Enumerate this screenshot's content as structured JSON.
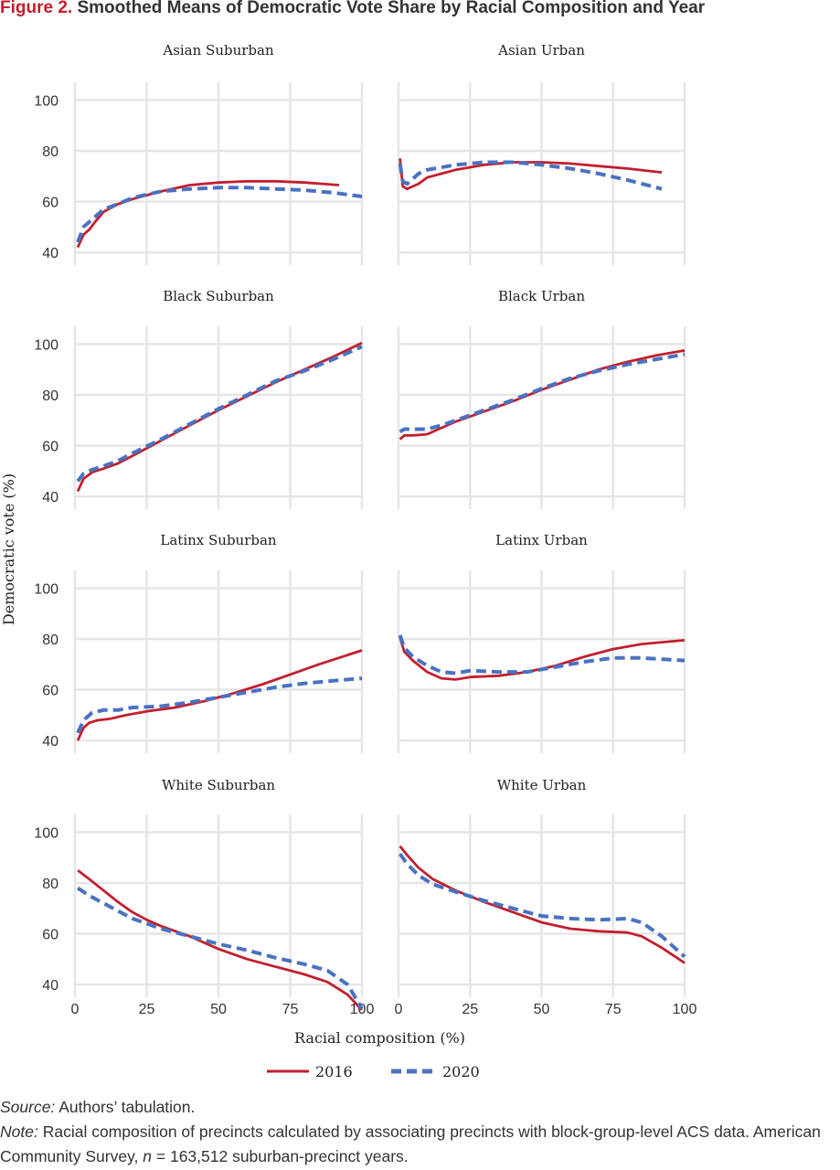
{
  "figure": {
    "number": "Figure 2.",
    "title": "Smoothed Means of Democratic Vote Share by Racial Composition and Year"
  },
  "notes": {
    "source_label": "Source:",
    "source_text": "Authors’ tabulation.",
    "note_label": "Note:",
    "note_text_a": "Racial composition of precincts calculated by associating precincts with block-group-level ACS data. American Community Survey,",
    "note_n": "n",
    "note_text_b": "= 163,512 suburban-precinct years."
  },
  "chart_data": {
    "type": "line",
    "xlabel": "Racial composition (%)",
    "ylabel": "Democratic vote (%)",
    "xlim": [
      0,
      100
    ],
    "ylim": [
      35,
      107
    ],
    "x_ticks": [
      0,
      25,
      50,
      75,
      100
    ],
    "y_ticks": [
      40,
      60,
      80,
      100
    ],
    "grid": true,
    "legend_position": "bottom",
    "series_styles": [
      {
        "name": "2016",
        "color": "#c21f2e",
        "dash": "solid"
      },
      {
        "name": "2020",
        "color": "#4a72c0",
        "dash": "dashed"
      }
    ],
    "panels": [
      {
        "title": "Asian Suburban",
        "series": [
          {
            "name": "2016",
            "points": [
              [
                1,
                42
              ],
              [
                3,
                47
              ],
              [
                5,
                49
              ],
              [
                7,
                52
              ],
              [
                10,
                56
              ],
              [
                15,
                59
              ],
              [
                20,
                61
              ],
              [
                30,
                64
              ],
              [
                40,
                66.5
              ],
              [
                50,
                67.5
              ],
              [
                60,
                68
              ],
              [
                70,
                68
              ],
              [
                80,
                67.5
              ],
              [
                92,
                66.5
              ]
            ]
          },
          {
            "name": "2020",
            "points": [
              [
                1,
                44
              ],
              [
                3,
                50
              ],
              [
                6,
                53
              ],
              [
                10,
                57
              ],
              [
                15,
                59
              ],
              [
                20,
                61.5
              ],
              [
                30,
                64
              ],
              [
                40,
                65
              ],
              [
                50,
                65.5
              ],
              [
                60,
                65.5
              ],
              [
                70,
                65
              ],
              [
                80,
                64.5
              ],
              [
                90,
                63.5
              ],
              [
                100,
                62
              ]
            ]
          }
        ]
      },
      {
        "title": "Asian Urban",
        "series": [
          {
            "name": "2016",
            "points": [
              [
                0.5,
                77
              ],
              [
                1.5,
                66
              ],
              [
                3,
                65
              ],
              [
                5,
                66
              ],
              [
                7,
                67
              ],
              [
                10,
                69.5
              ],
              [
                15,
                71
              ],
              [
                20,
                72.5
              ],
              [
                30,
                74.5
              ],
              [
                40,
                75.5
              ],
              [
                50,
                75.5
              ],
              [
                60,
                75
              ],
              [
                70,
                74
              ],
              [
                80,
                73
              ],
              [
                92,
                71.5
              ]
            ]
          },
          {
            "name": "2020",
            "points": [
              [
                0.5,
                75
              ],
              [
                1.5,
                68
              ],
              [
                3,
                67
              ],
              [
                5,
                69
              ],
              [
                7,
                71
              ],
              [
                10,
                72.5
              ],
              [
                15,
                73.5
              ],
              [
                20,
                74.5
              ],
              [
                30,
                75.5
              ],
              [
                40,
                75.5
              ],
              [
                50,
                74.5
              ],
              [
                60,
                73
              ],
              [
                70,
                71
              ],
              [
                80,
                68.5
              ],
              [
                92,
                65
              ]
            ]
          }
        ]
      },
      {
        "title": "Black Suburban",
        "series": [
          {
            "name": "2016",
            "points": [
              [
                1,
                42
              ],
              [
                3,
                47
              ],
              [
                6,
                49.5
              ],
              [
                10,
                51
              ],
              [
                15,
                53
              ],
              [
                20,
                56
              ],
              [
                30,
                62
              ],
              [
                40,
                68
              ],
              [
                50,
                74
              ],
              [
                60,
                79.5
              ],
              [
                70,
                85
              ],
              [
                80,
                90
              ],
              [
                90,
                95
              ],
              [
                100,
                100.5
              ]
            ]
          },
          {
            "name": "2020",
            "points": [
              [
                1,
                46
              ],
              [
                3,
                49
              ],
              [
                6,
                50.5
              ],
              [
                10,
                52
              ],
              [
                15,
                54
              ],
              [
                20,
                57
              ],
              [
                30,
                62.5
              ],
              [
                40,
                68.5
              ],
              [
                50,
                74.5
              ],
              [
                60,
                80
              ],
              [
                70,
                85.5
              ],
              [
                80,
                89.5
              ],
              [
                90,
                94
              ],
              [
                100,
                99
              ]
            ]
          }
        ]
      },
      {
        "title": "Black Urban",
        "series": [
          {
            "name": "2016",
            "points": [
              [
                0.5,
                62.5
              ],
              [
                2,
                64
              ],
              [
                5,
                64
              ],
              [
                10,
                64.5
              ],
              [
                15,
                67
              ],
              [
                20,
                69.5
              ],
              [
                30,
                73.5
              ],
              [
                40,
                77.5
              ],
              [
                50,
                82
              ],
              [
                60,
                86
              ],
              [
                70,
                90
              ],
              [
                80,
                93
              ],
              [
                90,
                95.5
              ],
              [
                100,
                97.5
              ]
            ]
          },
          {
            "name": "2020",
            "points": [
              [
                0.5,
                65.5
              ],
              [
                2,
                66.5
              ],
              [
                5,
                66.5
              ],
              [
                10,
                66.5
              ],
              [
                15,
                68
              ],
              [
                20,
                70
              ],
              [
                30,
                74
              ],
              [
                40,
                78
              ],
              [
                50,
                82.5
              ],
              [
                60,
                86.5
              ],
              [
                70,
                89.5
              ],
              [
                80,
                92
              ],
              [
                90,
                94
              ],
              [
                100,
                96
              ]
            ]
          }
        ]
      },
      {
        "title": "Latinx Suburban",
        "series": [
          {
            "name": "2016",
            "points": [
              [
                1,
                40
              ],
              [
                3,
                45
              ],
              [
                5,
                47
              ],
              [
                8,
                48
              ],
              [
                12,
                48.5
              ],
              [
                18,
                50
              ],
              [
                25,
                51.5
              ],
              [
                35,
                53
              ],
              [
                45,
                55.5
              ],
              [
                55,
                58.5
              ],
              [
                65,
                62
              ],
              [
                75,
                66
              ],
              [
                85,
                70
              ],
              [
                100,
                75.5
              ]
            ]
          },
          {
            "name": "2020",
            "points": [
              [
                1,
                43
              ],
              [
                3,
                48
              ],
              [
                6,
                51
              ],
              [
                10,
                52
              ],
              [
                15,
                52
              ],
              [
                20,
                53
              ],
              [
                30,
                53.5
              ],
              [
                40,
                55
              ],
              [
                50,
                57
              ],
              [
                60,
                59
              ],
              [
                70,
                61
              ],
              [
                80,
                62.5
              ],
              [
                90,
                63.5
              ],
              [
                100,
                64.5
              ]
            ]
          }
        ]
      },
      {
        "title": "Latinx Urban",
        "series": [
          {
            "name": "2016",
            "points": [
              [
                0.5,
                80.5
              ],
              [
                2,
                75
              ],
              [
                5,
                71.5
              ],
              [
                10,
                67
              ],
              [
                15,
                64.5
              ],
              [
                20,
                64
              ],
              [
                25,
                65
              ],
              [
                35,
                65.5
              ],
              [
                45,
                67
              ],
              [
                55,
                69.5
              ],
              [
                65,
                73
              ],
              [
                75,
                76
              ],
              [
                85,
                78
              ],
              [
                100,
                79.5
              ]
            ]
          },
          {
            "name": "2020",
            "points": [
              [
                0.5,
                81.5
              ],
              [
                2,
                76.5
              ],
              [
                5,
                73
              ],
              [
                10,
                69.5
              ],
              [
                15,
                67
              ],
              [
                20,
                66.5
              ],
              [
                25,
                67.5
              ],
              [
                35,
                67
              ],
              [
                45,
                67
              ],
              [
                55,
                69
              ],
              [
                65,
                71
              ],
              [
                75,
                72.5
              ],
              [
                85,
                72.5
              ],
              [
                100,
                71.5
              ]
            ]
          }
        ]
      },
      {
        "title": "White Suburban",
        "series": [
          {
            "name": "2016",
            "points": [
              [
                1,
                85
              ],
              [
                5,
                81.5
              ],
              [
                10,
                77
              ],
              [
                15,
                72.5
              ],
              [
                20,
                68.5
              ],
              [
                25,
                65.5
              ],
              [
                30,
                63
              ],
              [
                40,
                59
              ],
              [
                50,
                54
              ],
              [
                60,
                50
              ],
              [
                70,
                47
              ],
              [
                80,
                44
              ],
              [
                88,
                41
              ],
              [
                95,
                36
              ],
              [
                100,
                30
              ]
            ]
          },
          {
            "name": "2020",
            "points": [
              [
                1,
                78
              ],
              [
                5,
                75
              ],
              [
                10,
                72
              ],
              [
                15,
                69
              ],
              [
                20,
                66
              ],
              [
                25,
                64
              ],
              [
                30,
                62
              ],
              [
                40,
                59
              ],
              [
                50,
                56
              ],
              [
                60,
                53.5
              ],
              [
                70,
                50.5
              ],
              [
                80,
                48
              ],
              [
                88,
                45.5
              ],
              [
                95,
                40
              ],
              [
                100,
                30.5
              ]
            ]
          }
        ]
      },
      {
        "title": "White Urban",
        "series": [
          {
            "name": "2016",
            "points": [
              [
                0.5,
                94.5
              ],
              [
                3,
                91
              ],
              [
                7,
                86
              ],
              [
                12,
                81.5
              ],
              [
                20,
                77
              ],
              [
                30,
                72.5
              ],
              [
                40,
                68.5
              ],
              [
                50,
                64.5
              ],
              [
                60,
                62
              ],
              [
                70,
                61
              ],
              [
                80,
                60.5
              ],
              [
                85,
                59
              ],
              [
                92,
                54.5
              ],
              [
                100,
                48.5
              ]
            ]
          },
          {
            "name": "2020",
            "points": [
              [
                0.5,
                91.5
              ],
              [
                3,
                87.5
              ],
              [
                7,
                83
              ],
              [
                12,
                79.5
              ],
              [
                20,
                76.5
              ],
              [
                30,
                73
              ],
              [
                40,
                70
              ],
              [
                50,
                67
              ],
              [
                60,
                66
              ],
              [
                70,
                65.5
              ],
              [
                80,
                66
              ],
              [
                85,
                64.5
              ],
              [
                92,
                59
              ],
              [
                100,
                51
              ]
            ]
          }
        ]
      }
    ]
  }
}
